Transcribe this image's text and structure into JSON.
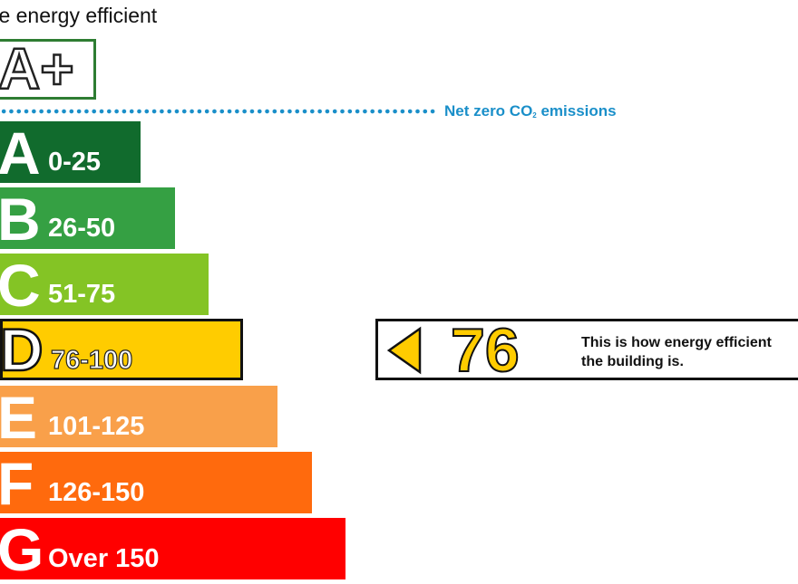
{
  "chart_data": {
    "type": "bar",
    "title": "ore energy efficient",
    "top_band": {
      "letter": "A+"
    },
    "net_zero": {
      "label": "Net zero CO",
      "subscript": "2",
      "label_tail": " emissions",
      "color": "#1a8fc9"
    },
    "bands": [
      {
        "letter": "A",
        "range": "0-25",
        "color": "#116b2d"
      },
      {
        "letter": "B",
        "range": "26-50",
        "color": "#35a043"
      },
      {
        "letter": "C",
        "range": "51-75",
        "color": "#84c425"
      },
      {
        "letter": "D",
        "range": "76-100",
        "color": "#ffcc00",
        "current": true
      },
      {
        "letter": "E",
        "range": "101-125",
        "color": "#f9a04a"
      },
      {
        "letter": "F",
        "range": "126-150",
        "color": "#ff6a0d"
      },
      {
        "letter": "G",
        "range": "Over 150",
        "color": "#ff0000"
      }
    ],
    "current_rating": {
      "score": "76",
      "band": "D",
      "color": "#ffcc00",
      "text_line1": "This is how energy efficient",
      "text_line2": "the building is."
    }
  }
}
